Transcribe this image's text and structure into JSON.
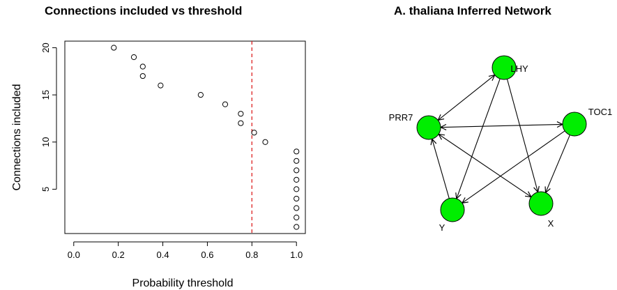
{
  "chart_data": [
    {
      "type": "scatter",
      "title": "Connections included vs threshold",
      "xlabel": "Probability threshold",
      "ylabel": "Connections included",
      "xlim": [
        -0.04,
        1.04
      ],
      "ylim": [
        0.3,
        20.7
      ],
      "xticks": [
        "0.0",
        "0.2",
        "0.4",
        "0.6",
        "0.8",
        "1.0"
      ],
      "yticks": [
        "5",
        "10",
        "15",
        "20"
      ],
      "threshold_line": {
        "x": 0.8,
        "color": "#dd2222",
        "style": "dashed"
      },
      "points": [
        {
          "x": 0.18,
          "y": 20
        },
        {
          "x": 0.27,
          "y": 19
        },
        {
          "x": 0.31,
          "y": 18
        },
        {
          "x": 0.31,
          "y": 17
        },
        {
          "x": 0.39,
          "y": 16
        },
        {
          "x": 0.57,
          "y": 15
        },
        {
          "x": 0.68,
          "y": 14
        },
        {
          "x": 0.75,
          "y": 13
        },
        {
          "x": 0.75,
          "y": 12
        },
        {
          "x": 0.81,
          "y": 11
        },
        {
          "x": 0.86,
          "y": 10
        },
        {
          "x": 1.0,
          "y": 9
        },
        {
          "x": 1.0,
          "y": 8
        },
        {
          "x": 1.0,
          "y": 7
        },
        {
          "x": 1.0,
          "y": 6
        },
        {
          "x": 1.0,
          "y": 5
        },
        {
          "x": 1.0,
          "y": 4
        },
        {
          "x": 1.0,
          "y": 3
        },
        {
          "x": 1.0,
          "y": 2
        },
        {
          "x": 1.0,
          "y": 1
        }
      ]
    },
    {
      "type": "network",
      "title": "A. thaliana Inferred Network",
      "node_color": "#00ee00",
      "nodes": [
        "LHY",
        "TOC1",
        "PRR7",
        "Y",
        "X"
      ],
      "edges": [
        {
          "from": "LHY",
          "to": "PRR7",
          "both": true
        },
        {
          "from": "LHY",
          "to": "Y",
          "both": false
        },
        {
          "from": "LHY",
          "to": "X",
          "both": false
        },
        {
          "from": "PRR7",
          "to": "TOC1",
          "both": true
        },
        {
          "from": "PRR7",
          "to": "X",
          "both": true
        },
        {
          "from": "TOC1",
          "to": "Y",
          "both": false
        },
        {
          "from": "TOC1",
          "to": "X",
          "both": false
        },
        {
          "from": "Y",
          "to": "PRR7",
          "both": false
        }
      ]
    }
  ]
}
